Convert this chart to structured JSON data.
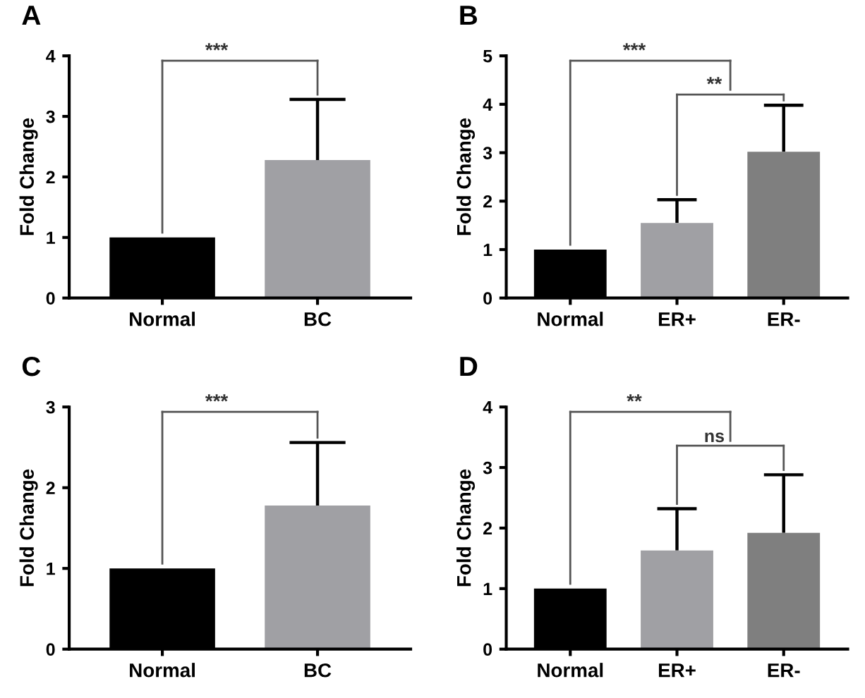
{
  "chart_data": [
    {
      "type": "bar",
      "title": "A",
      "ylabel": "Fold Change",
      "categories": [
        "Normal",
        "BC"
      ],
      "values": [
        1.0,
        2.28
      ],
      "colors": [
        "#000000",
        "#a0a0a4"
      ],
      "errors": [
        null,
        [
          2.28,
          3.28
        ]
      ],
      "ylim": [
        0,
        4
      ],
      "yticks": [
        0,
        1,
        2,
        3,
        4
      ],
      "annotations": [
        "***"
      ]
    },
    {
      "type": "bar",
      "title": "B",
      "ylabel": "Fold Change",
      "categories": [
        "Normal",
        "ER+",
        "ER-"
      ],
      "values": [
        1.0,
        1.55,
        3.02
      ],
      "colors": [
        "#000000",
        "#a0a0a4",
        "#7f7f7f"
      ],
      "errors": [
        null,
        [
          1.55,
          2.03
        ],
        [
          3.02,
          3.98
        ]
      ],
      "ylim": [
        0,
        5
      ],
      "yticks": [
        0,
        1,
        2,
        3,
        4,
        5
      ],
      "annotations": [
        "***",
        "**"
      ]
    },
    {
      "type": "bar",
      "title": "C",
      "ylabel": "Fold Change",
      "categories": [
        "Normal",
        "BC"
      ],
      "values": [
        1.0,
        1.78
      ],
      "colors": [
        "#000000",
        "#a0a0a4"
      ],
      "errors": [
        null,
        [
          1.78,
          2.56
        ]
      ],
      "ylim": [
        0,
        3
      ],
      "yticks": [
        0,
        1,
        2,
        3
      ],
      "annotations": [
        "***"
      ]
    },
    {
      "type": "bar",
      "title": "D",
      "ylabel": "Fold Change",
      "categories": [
        "Normal",
        "ER+",
        "ER-"
      ],
      "values": [
        1.0,
        1.63,
        1.92
      ],
      "colors": [
        "#000000",
        "#a0a0a4",
        "#7f7f7f"
      ],
      "errors": [
        null,
        [
          1.63,
          2.32
        ],
        [
          1.92,
          2.88
        ]
      ],
      "ylim": [
        0,
        4
      ],
      "yticks": [
        0,
        1,
        2,
        3,
        4
      ],
      "annotations": [
        "**",
        "ns"
      ]
    }
  ]
}
